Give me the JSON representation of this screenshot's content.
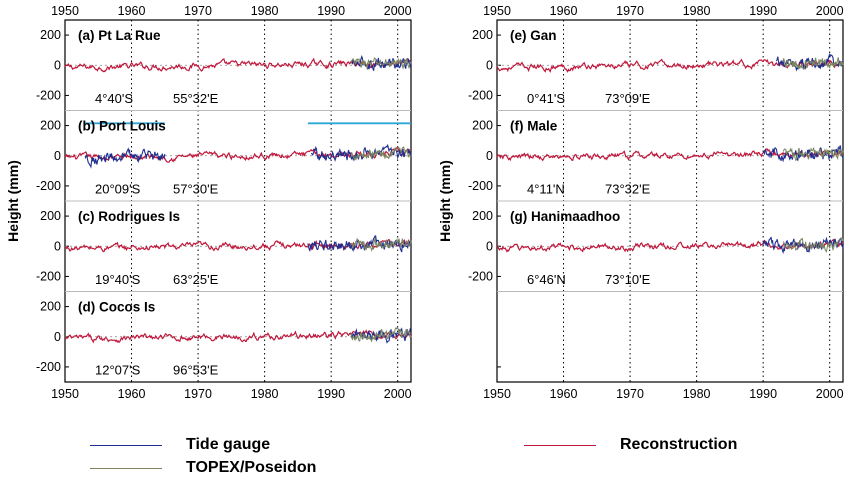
{
  "chart_data": {
    "type": "line",
    "ylabel": "Height (mm)",
    "x_ticks": [
      1950,
      1960,
      1970,
      1980,
      1990,
      2000
    ],
    "x_range": [
      1950,
      2002
    ],
    "y_ticks": [
      200,
      0,
      -200
    ],
    "y_range_per_panel": [
      -300,
      300
    ],
    "grid": "vertical dotted lines at decades",
    "legend": {
      "tide_gauge": "Tide gauge",
      "topex": "TOPEX/Poseidon",
      "reconstruction": "Reconstruction"
    },
    "colors": {
      "tide_gauge": "#1f2f8f",
      "topex": "#7a8560",
      "reconstruction": "#c0183c",
      "bar": "#2aa7d2"
    },
    "panels": [
      {
        "label": "(a) Pt La Rue",
        "lat": "4°40'S",
        "lon": "55°32'E",
        "column": "left",
        "row": 0,
        "tg_start": 1993,
        "tp_start": 1993
      },
      {
        "label": "(b) Port Louis",
        "lat": "20°09'S",
        "lon": "57°30'E",
        "column": "left",
        "row": 1,
        "tg_start": 1953,
        "tg_end": 1965,
        "tg_start2": 1987,
        "tp_start": 1993,
        "bars": [
          [
            1953,
            1965
          ],
          [
            1986.5,
            2002
          ]
        ]
      },
      {
        "label": "(c) Rodrigues Is",
        "lat": "19°40'S",
        "lon": "63°25'E",
        "column": "left",
        "row": 2,
        "tg_start": 1986.5,
        "tp_start": 1993
      },
      {
        "label": "(d) Cocos Is",
        "lat": "12°07'S",
        "lon": "96°53'E",
        "column": "left",
        "row": 3,
        "tg_start": 1993,
        "tp_start": 1993
      },
      {
        "label": "(e) Gan",
        "lat": "0°41'S",
        "lon": "73°09'E",
        "column": "right",
        "row": 0,
        "tg_start": 1992,
        "tp_start": 1993
      },
      {
        "label": "(f) Male",
        "lat": "4°11'N",
        "lon": "73°32'E",
        "column": "right",
        "row": 1,
        "tg_start": 1990,
        "tp_start": 1993
      },
      {
        "label": "(g) Hanimaadhoo",
        "lat": "6°46'N",
        "lon": "73°10'E",
        "column": "right",
        "row": 2,
        "tg_start": 1990,
        "tp_start": 1993
      }
    ]
  }
}
